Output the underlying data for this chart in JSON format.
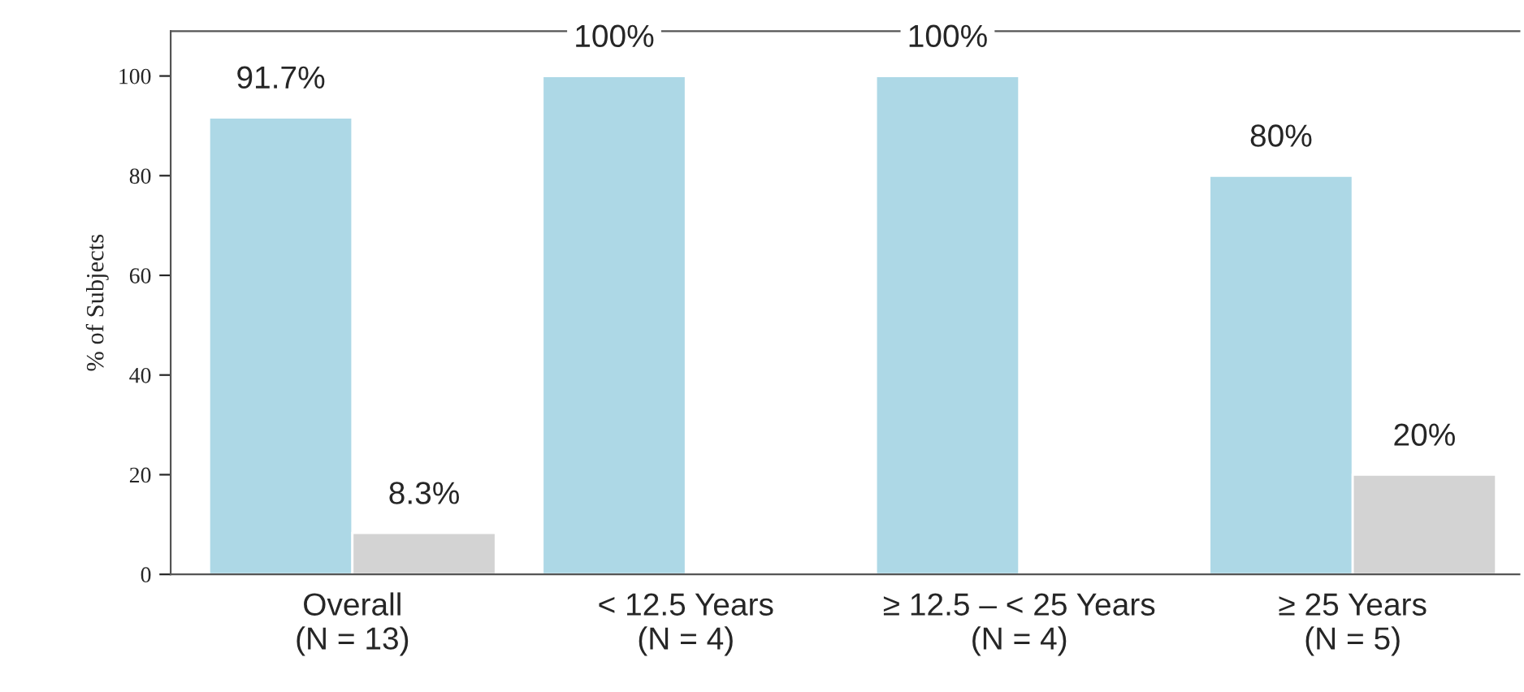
{
  "chart_data": {
    "type": "bar",
    "ylabel": "% of Subjects",
    "categories": [
      "Overall\n(N = 13)",
      "< 12.5 Years\n(N = 4)",
      "≥ 12.5 – < 25 Years\n(N = 4)",
      "≥ 25 Years\n(N = 5)"
    ],
    "series": [
      {
        "color": "#add8e6",
        "values": [
          91.7,
          100,
          100,
          80
        ],
        "value_labels": [
          "91.7%",
          "100%",
          "100%",
          "80%"
        ]
      },
      {
        "color": "#d3d3d3",
        "values": [
          8.3,
          null,
          null,
          20
        ],
        "value_labels": [
          "8.3%",
          null,
          null,
          "20%"
        ]
      }
    ],
    "ylim": [
      0,
      109
    ],
    "yticks": [
      0,
      20,
      40,
      60,
      80,
      100
    ],
    "grid": false,
    "legend": false
  }
}
